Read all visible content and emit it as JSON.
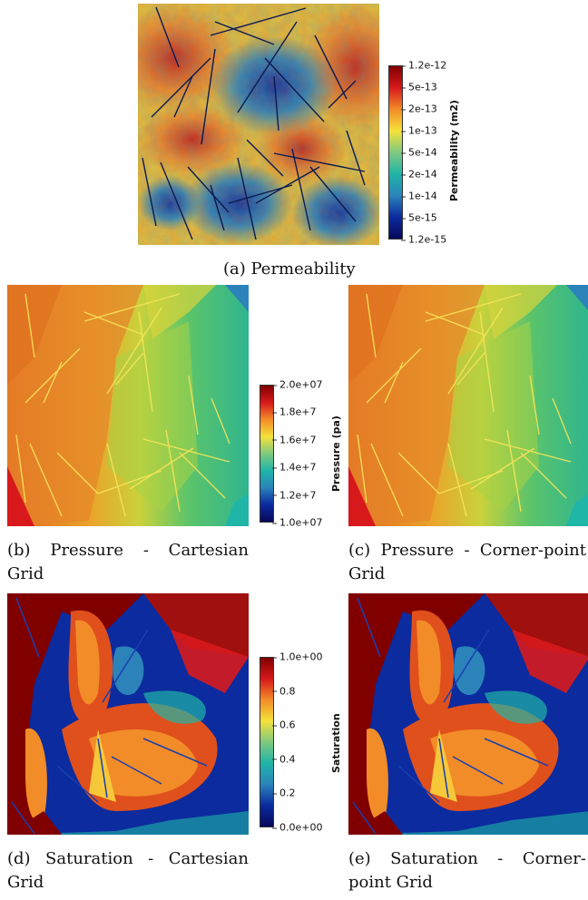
{
  "figure": {
    "a": {
      "caption": "(a) Permeability",
      "colorbar": {
        "title": "Permeability (m2)",
        "ticks": [
          "1.2e-12",
          "5e-13",
          "2e-13",
          "1e-13",
          "5e-14",
          "2e-14",
          "1e-14",
          "5e-15",
          "1.2e-15"
        ]
      }
    },
    "b": {
      "caption_words": [
        "(b)",
        "Pressure",
        "-",
        "Cartesian"
      ],
      "caption_line2": "Grid"
    },
    "c": {
      "caption_words": [
        "(c)",
        "Pressure",
        "-",
        "Corner-point"
      ],
      "caption_line2": "Grid"
    },
    "pressure_colorbar": {
      "title": "Pressure (pa)",
      "ticks": [
        "2.0e+07",
        "1.8e+7",
        "1.6e+7",
        "1.4e+7",
        "1.2e+7",
        "1.0e+07"
      ]
    },
    "d": {
      "caption_words": [
        "(d)",
        "Saturation",
        "-",
        "Cartesian"
      ],
      "caption_line2": "Grid"
    },
    "e": {
      "caption_words": [
        "(e)",
        "Saturation",
        "-",
        "Corner-"
      ],
      "caption_line2": "point Grid"
    },
    "saturation_colorbar": {
      "title": "Saturation",
      "ticks": [
        "1.0e+00",
        "0.8",
        "0.6",
        "0.4",
        "0.2",
        "0.0e+00"
      ]
    },
    "colormap": [
      "#800000",
      "#d7191c",
      "#f28c28",
      "#f5e13a",
      "#7fc97f",
      "#1fb5a7",
      "#2b83ba",
      "#0b2b9e",
      "#08085a"
    ]
  }
}
